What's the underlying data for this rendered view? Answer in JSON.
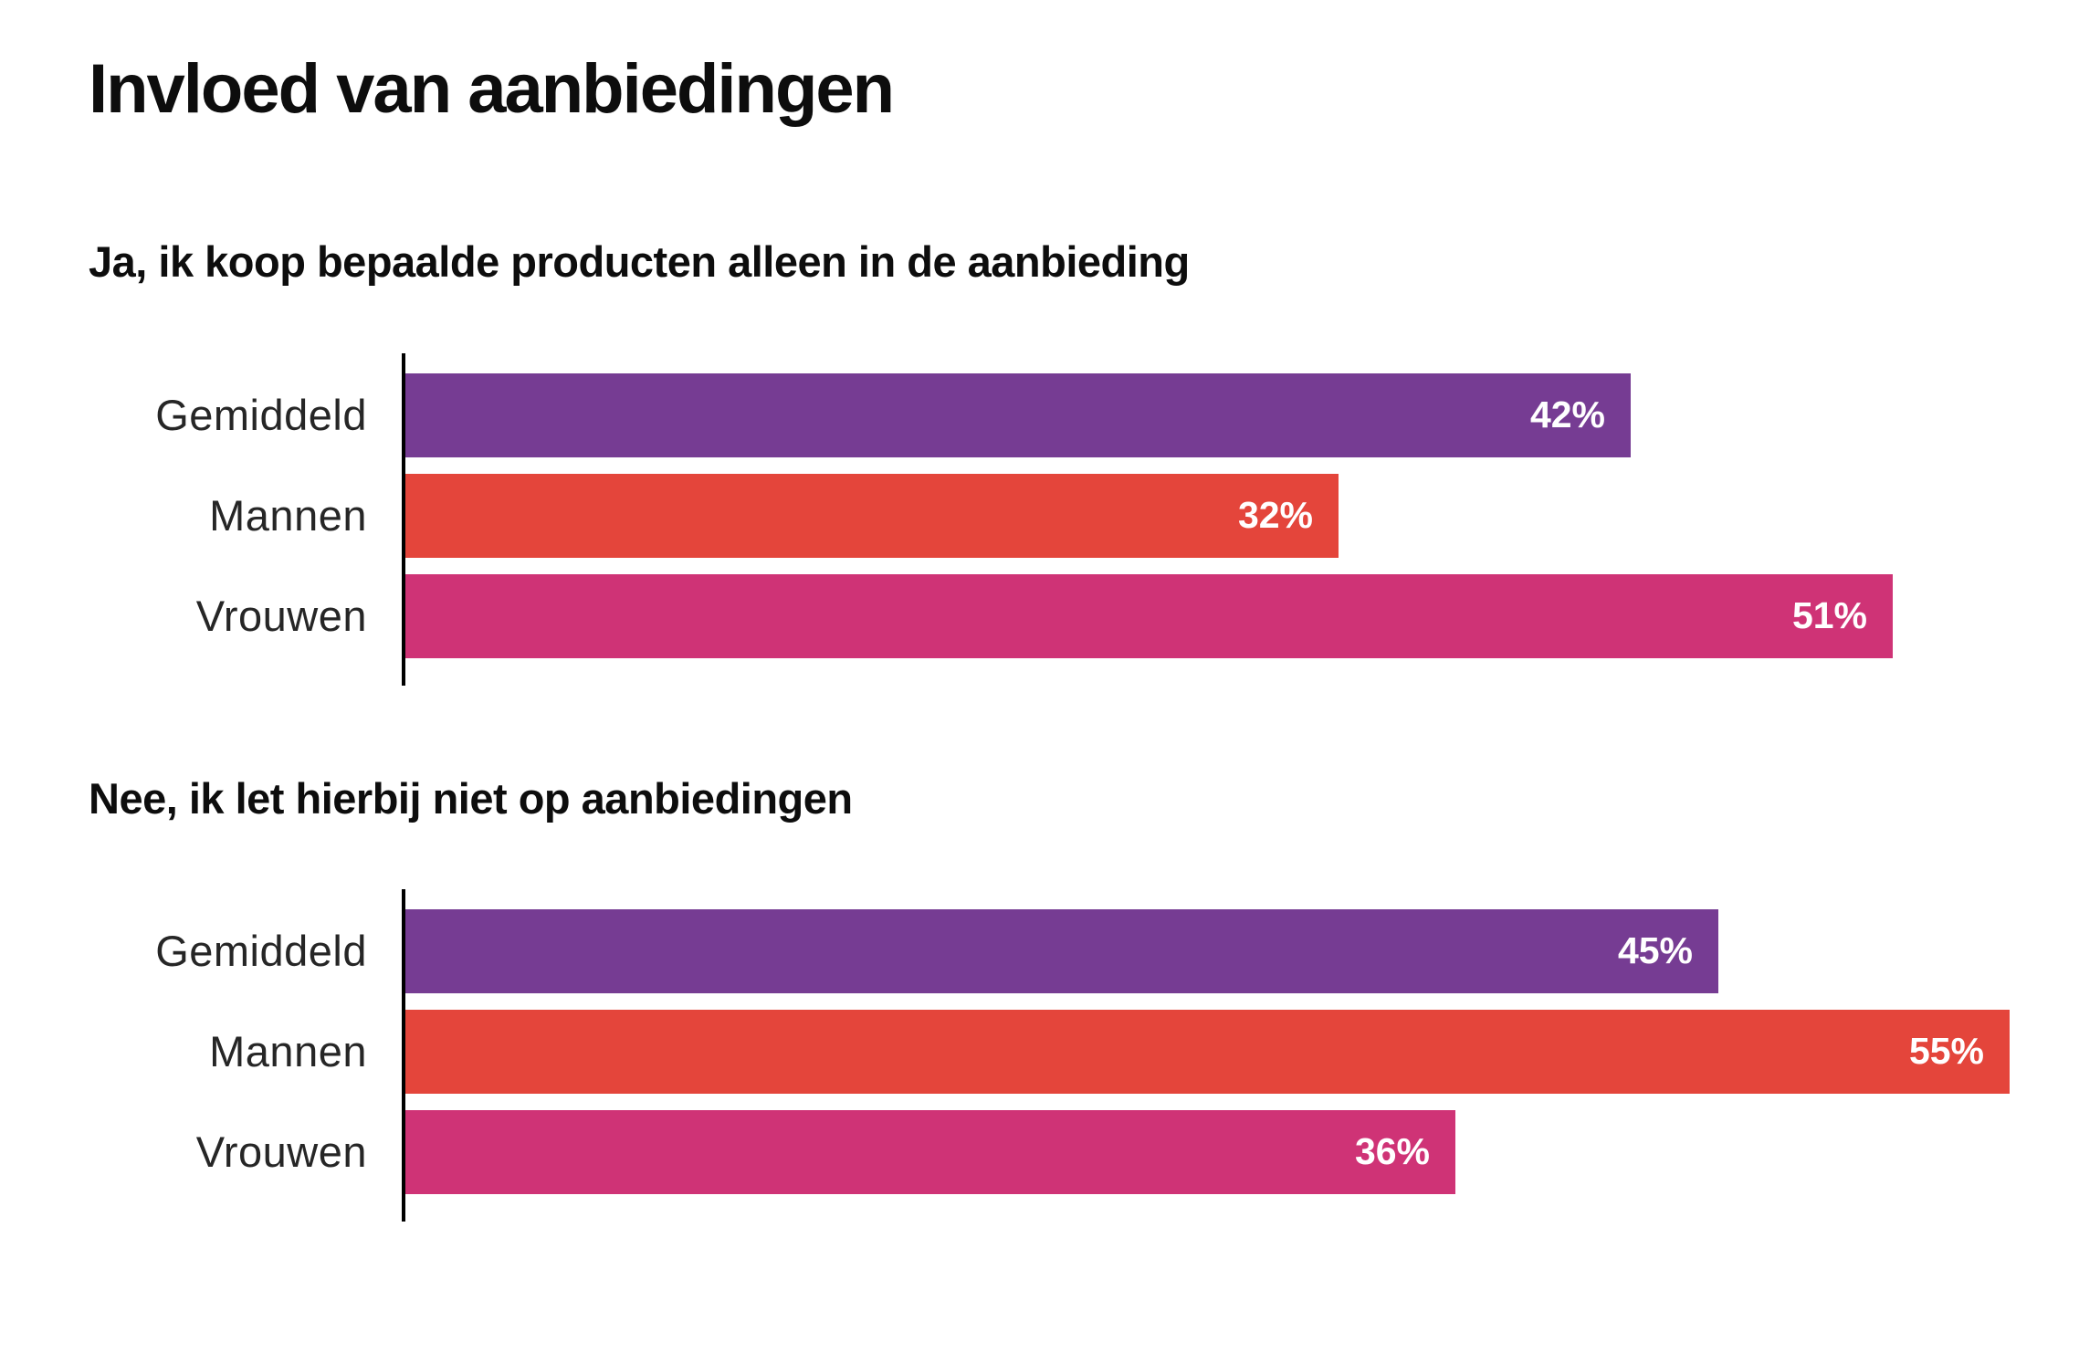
{
  "title": "Invloed van aanbiedingen",
  "colors": {
    "gemiddeld": "#763C93",
    "mannen": "#E4453B",
    "vrouwen": "#CF3376",
    "axis": "#000000",
    "value_text": "#FFFFFF",
    "background": "#FFFFFF"
  },
  "chart_data": [
    {
      "type": "bar",
      "orientation": "horizontal",
      "title": "Ja, ik koop bepaalde producten alleen in de aanbieding",
      "categories": [
        "Gemiddeld",
        "Mannen",
        "Vrouwen"
      ],
      "values": [
        42,
        32,
        51
      ],
      "value_labels": [
        "42%",
        "32%",
        "51%"
      ],
      "bar_colors": [
        "#763C93",
        "#E4453B",
        "#CF3376"
      ],
      "unit": "%",
      "xlim": [
        0,
        58
      ],
      "grid": false,
      "legend": "none"
    },
    {
      "type": "bar",
      "orientation": "horizontal",
      "title": "Nee, ik let hierbij niet op aanbiedingen",
      "categories": [
        "Gemiddeld",
        "Mannen",
        "Vrouwen"
      ],
      "values": [
        45,
        55,
        36
      ],
      "value_labels": [
        "45%",
        "55%",
        "36%"
      ],
      "bar_colors": [
        "#763C93",
        "#E4453B",
        "#CF3376"
      ],
      "unit": "%",
      "xlim": [
        0,
        58
      ],
      "grid": false,
      "legend": "none"
    }
  ]
}
